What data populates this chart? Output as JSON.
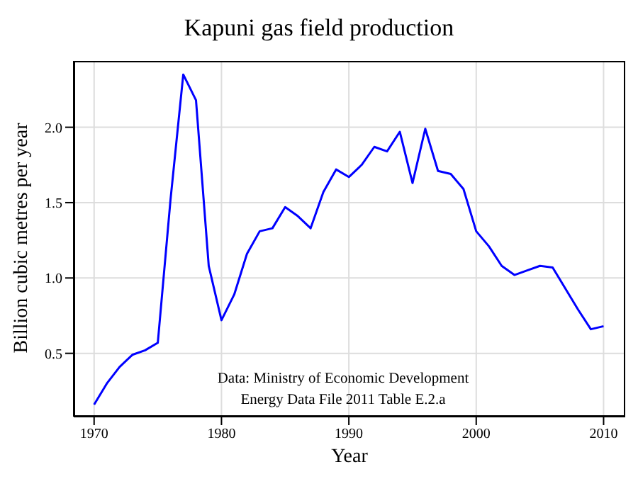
{
  "chart_data": {
    "type": "line",
    "title": "Kapuni gas field production",
    "xlabel": "Year",
    "ylabel": "Billion cubic metres per year",
    "annotations": [
      "Data: Ministry of Economic Development\nEnergy Data File 2011 Table E.2.a"
    ],
    "x": [
      1970,
      1971,
      1972,
      1973,
      1974,
      1975,
      1976,
      1977,
      1978,
      1979,
      1980,
      1981,
      1982,
      1983,
      1984,
      1985,
      1986,
      1987,
      1988,
      1989,
      1990,
      1991,
      1992,
      1993,
      1994,
      1995,
      1996,
      1997,
      1998,
      1999,
      2000,
      2001,
      2002,
      2003,
      2004,
      2005,
      2006,
      2007,
      2008,
      2009,
      2010
    ],
    "series": [
      {
        "color": "#0000ff",
        "values": [
          0.16,
          0.3,
          0.41,
          0.49,
          0.52,
          0.57,
          1.52,
          2.35,
          2.18,
          1.08,
          0.72,
          0.89,
          1.16,
          1.31,
          1.33,
          1.47,
          1.41,
          1.33,
          1.57,
          1.72,
          1.67,
          1.75,
          1.87,
          1.84,
          1.97,
          1.63,
          1.99,
          1.71,
          1.69,
          1.59,
          1.31,
          1.21,
          1.08,
          1.02,
          1.05,
          1.08,
          1.07,
          0.93,
          0.79,
          0.66,
          0.68
        ]
      }
    ],
    "xlim": [
      1968.4,
      2011.7
    ],
    "xticks": [
      1970,
      1980,
      1990,
      2000,
      2010
    ],
    "ylim": [
      0.08,
      2.44
    ],
    "yticks": [
      0.5,
      {
        "value": 1,
        "label": "1.0"
      },
      1.5,
      {
        "value": 2,
        "label": "2.0"
      }
    ],
    "grid": true,
    "marker": "none",
    "line_style": "solid",
    "legend": false
  }
}
